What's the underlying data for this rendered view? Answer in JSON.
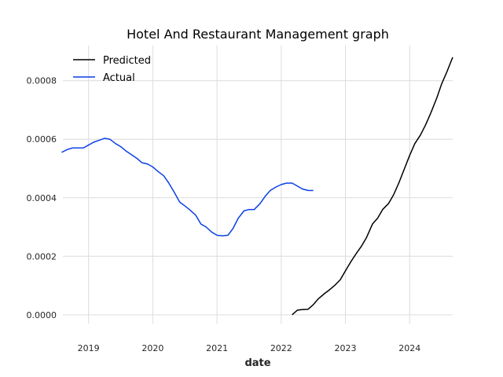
{
  "chart_data": {
    "type": "line",
    "title": "Hotel And Restaurant Management graph",
    "xlabel": "date",
    "ylabel": "",
    "xlim": [
      2018.6,
      2024.67
    ],
    "ylim": [
      -3e-05,
      0.00092
    ],
    "x_ticks": [
      {
        "value": 2019,
        "label": "2019"
      },
      {
        "value": 2020,
        "label": "2020"
      },
      {
        "value": 2021,
        "label": "2021"
      },
      {
        "value": 2022,
        "label": "2022"
      },
      {
        "value": 2023,
        "label": "2023"
      },
      {
        "value": 2024,
        "label": "2024"
      }
    ],
    "y_ticks": [
      {
        "value": 0.0,
        "label": "0.0000"
      },
      {
        "value": 0.0002,
        "label": "0.0002"
      },
      {
        "value": 0.0004,
        "label": "0.0004"
      },
      {
        "value": 0.0006,
        "label": "0.0006"
      },
      {
        "value": 0.0008,
        "label": "0.0008"
      }
    ],
    "grid": true,
    "legend_position": "top-left",
    "series": [
      {
        "name": "Predicted",
        "color": "#000000",
        "x": [
          2022.17,
          2022.25,
          2022.33,
          2022.42,
          2022.5,
          2022.58,
          2022.67,
          2022.75,
          2022.83,
          2022.92,
          2023.0,
          2023.08,
          2023.17,
          2023.25,
          2023.33,
          2023.42,
          2023.5,
          2023.58,
          2023.67,
          2023.75,
          2023.83,
          2023.92,
          2024.0,
          2024.08,
          2024.17,
          2024.25,
          2024.33,
          2024.42,
          2024.5,
          2024.58,
          2024.67
        ],
        "y": [
          0.0,
          1.6e-05,
          1.8e-05,
          1.9e-05,
          3.5e-05,
          5.5e-05,
          7.2e-05,
          8.5e-05,
          0.0001,
          0.00012,
          0.00015,
          0.00018,
          0.00021,
          0.000235,
          0.000265,
          0.00031,
          0.00033,
          0.00036,
          0.00038,
          0.00041,
          0.00045,
          0.0005,
          0.000545,
          0.000585,
          0.000615,
          0.00065,
          0.00069,
          0.00074,
          0.00079,
          0.00083,
          0.00088
        ]
      },
      {
        "name": "Actual",
        "color": "#0a3fe6",
        "x": [
          2018.58,
          2018.67,
          2018.75,
          2018.83,
          2018.92,
          2019.0,
          2019.08,
          2019.17,
          2019.25,
          2019.33,
          2019.42,
          2019.5,
          2019.58,
          2019.67,
          2019.75,
          2019.83,
          2019.92,
          2020.0,
          2020.08,
          2020.17,
          2020.25,
          2020.33,
          2020.42,
          2020.5,
          2020.58,
          2020.67,
          2020.75,
          2020.83,
          2020.92,
          2021.0,
          2021.08,
          2021.17,
          2021.25,
          2021.33,
          2021.42,
          2021.5,
          2021.58,
          2021.67,
          2021.75,
          2021.83,
          2021.92,
          2022.0,
          2022.08,
          2022.17,
          2022.25,
          2022.33,
          2022.42,
          2022.5
        ],
        "y": [
          0.000555,
          0.000565,
          0.00057,
          0.00057,
          0.00057,
          0.00058,
          0.00059,
          0.000597,
          0.000603,
          0.0006,
          0.000585,
          0.000575,
          0.00056,
          0.000547,
          0.000535,
          0.00052,
          0.000515,
          0.000505,
          0.00049,
          0.000475,
          0.00045,
          0.00042,
          0.000385,
          0.000372,
          0.000358,
          0.00034,
          0.00031,
          0.0003,
          0.000282,
          0.000272,
          0.00027,
          0.000272,
          0.000295,
          0.00033,
          0.000355,
          0.00036,
          0.00036,
          0.00038,
          0.000405,
          0.000425,
          0.000437,
          0.000445,
          0.00045,
          0.00045,
          0.00044,
          0.00043,
          0.000425,
          0.000425
        ]
      }
    ]
  }
}
